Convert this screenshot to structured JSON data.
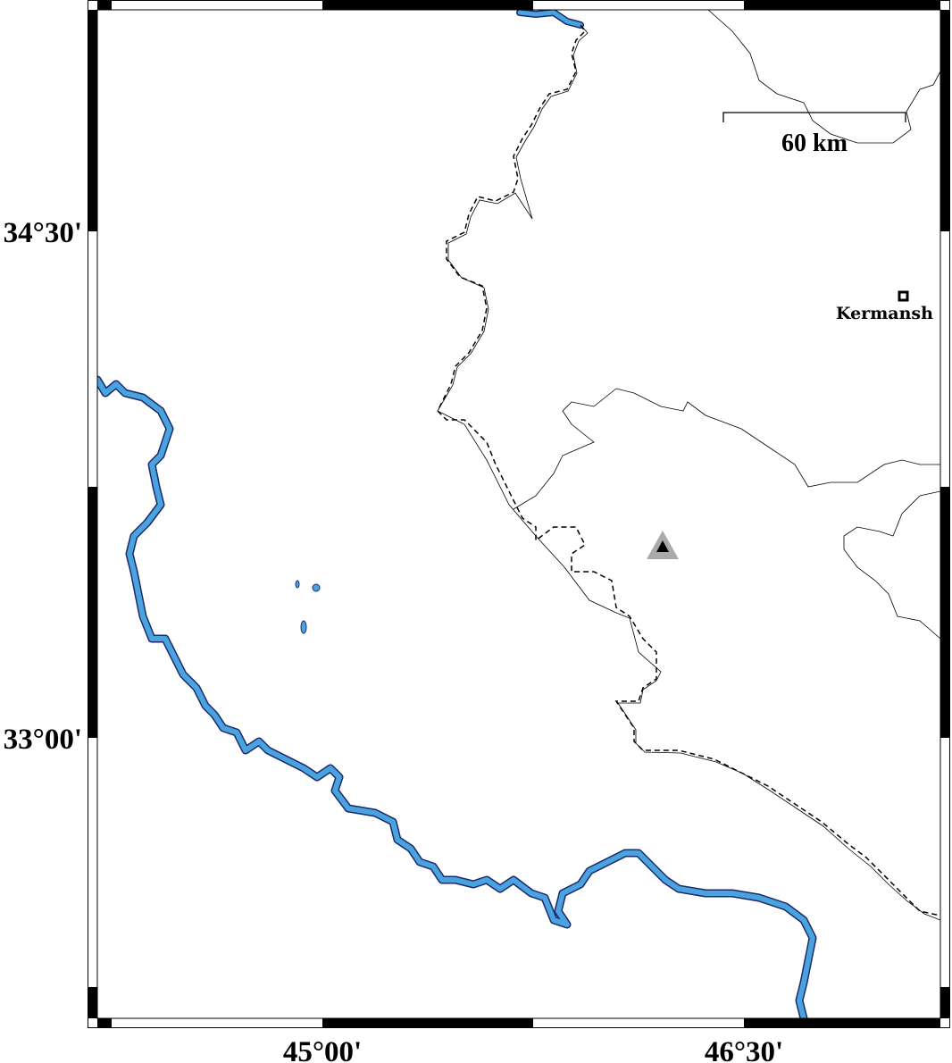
{
  "map": {
    "axes": {
      "x_ticks": [
        "45°00'",
        "46°30'"
      ],
      "y_ticks": [
        "34°30'",
        "33°00'"
      ]
    },
    "scale_bar": {
      "label": "60 km"
    },
    "cities": [
      {
        "name": "Kermanshah",
        "label": "Kermansh",
        "marker": "open-square"
      }
    ],
    "event_marker": {
      "symbol": "triangle",
      "outer_color": "#aaaaaa",
      "inner_color": "#000000"
    },
    "colors": {
      "river": "#4aa3df",
      "river_outline": "#1a2a6c",
      "border": "#000000",
      "frame": "#000000"
    }
  }
}
